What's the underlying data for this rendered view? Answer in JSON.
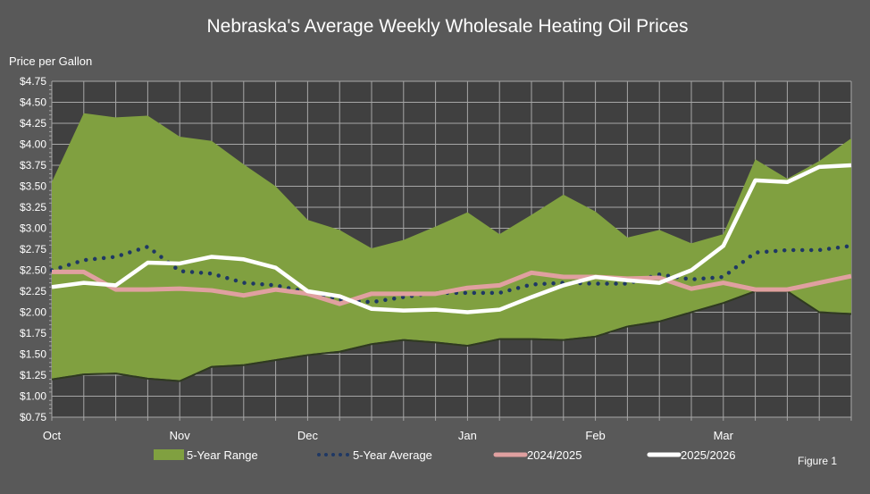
{
  "chart_data": {
    "type": "area+line",
    "title": "Nebraska's Average Weekly Wholesale Heating Oil Prices",
    "ylabel": "Price per Gallon",
    "xlabel": "",
    "ylim": [
      0.75,
      4.75
    ],
    "y_ticks": [
      "$0.75",
      "$1.00",
      "$1.25",
      "$1.50",
      "$1.75",
      "$2.00",
      "$2.25",
      "$2.50",
      "$2.75",
      "$3.00",
      "$3.25",
      "$3.50",
      "$3.75",
      "$4.00",
      "$4.25",
      "$4.50",
      "$4.75"
    ],
    "x_month_labels": [
      {
        "label": "Oct",
        "week_index": 0
      },
      {
        "label": "Nov",
        "week_index": 4
      },
      {
        "label": "Dec",
        "week_index": 8
      },
      {
        "label": "Jan",
        "week_index": 13
      },
      {
        "label": "Feb",
        "week_index": 17
      },
      {
        "label": "Mar",
        "week_index": 21
      }
    ],
    "grid": true,
    "legend_position": "bottom",
    "range": {
      "name": "5-Year Range",
      "color": "#80a040",
      "upper": [
        3.55,
        4.37,
        4.32,
        4.34,
        4.09,
        4.04,
        3.76,
        3.5,
        3.1,
        2.98,
        2.76,
        2.86,
        3.02,
        3.19,
        2.93,
        3.16,
        3.4,
        3.2,
        2.89,
        2.98,
        2.82,
        2.93,
        3.82,
        3.59,
        3.8,
        4.07
      ],
      "lower": [
        1.21,
        1.27,
        1.28,
        1.22,
        1.19,
        1.36,
        1.38,
        1.44,
        1.5,
        1.54,
        1.63,
        1.68,
        1.65,
        1.61,
        1.69,
        1.69,
        1.68,
        1.72,
        1.84,
        1.9,
        2.01,
        2.12,
        2.26,
        2.26,
        2.01,
        1.99
      ]
    },
    "series": [
      {
        "name": "5-Year Average",
        "color": "#1f3864",
        "style": "dotted",
        "values": [
          2.5,
          2.62,
          2.66,
          2.78,
          2.49,
          2.46,
          2.35,
          2.32,
          2.24,
          2.15,
          2.12,
          2.18,
          2.23,
          2.23,
          2.23,
          2.33,
          2.35,
          2.34,
          2.34,
          2.45,
          2.39,
          2.42,
          2.71,
          2.74,
          2.74,
          2.79
        ]
      },
      {
        "name": "2024/2025",
        "color": "#e0a0a0",
        "style": "solid",
        "values": [
          2.48,
          2.48,
          2.27,
          2.27,
          2.28,
          2.26,
          2.2,
          2.27,
          2.22,
          2.1,
          2.22,
          2.22,
          2.22,
          2.29,
          2.32,
          2.47,
          2.42,
          2.42,
          2.4,
          2.41,
          2.28,
          2.35,
          2.27,
          2.27,
          2.35,
          2.43
        ]
      },
      {
        "name": "2025/2026",
        "color": "#ffffff",
        "style": "solid",
        "values": [
          2.3,
          2.35,
          2.32,
          2.59,
          2.58,
          2.66,
          2.63,
          2.53,
          2.25,
          2.19,
          2.04,
          2.02,
          2.03,
          2.0,
          2.03,
          2.18,
          2.32,
          2.42,
          2.38,
          2.35,
          2.5,
          2.79,
          3.57,
          3.55,
          3.73,
          3.75
        ]
      }
    ]
  },
  "figure_label": "Figure 1",
  "colors": {
    "background": "#595959",
    "plot_background": "#404040",
    "grid": "#a6a6a6"
  }
}
